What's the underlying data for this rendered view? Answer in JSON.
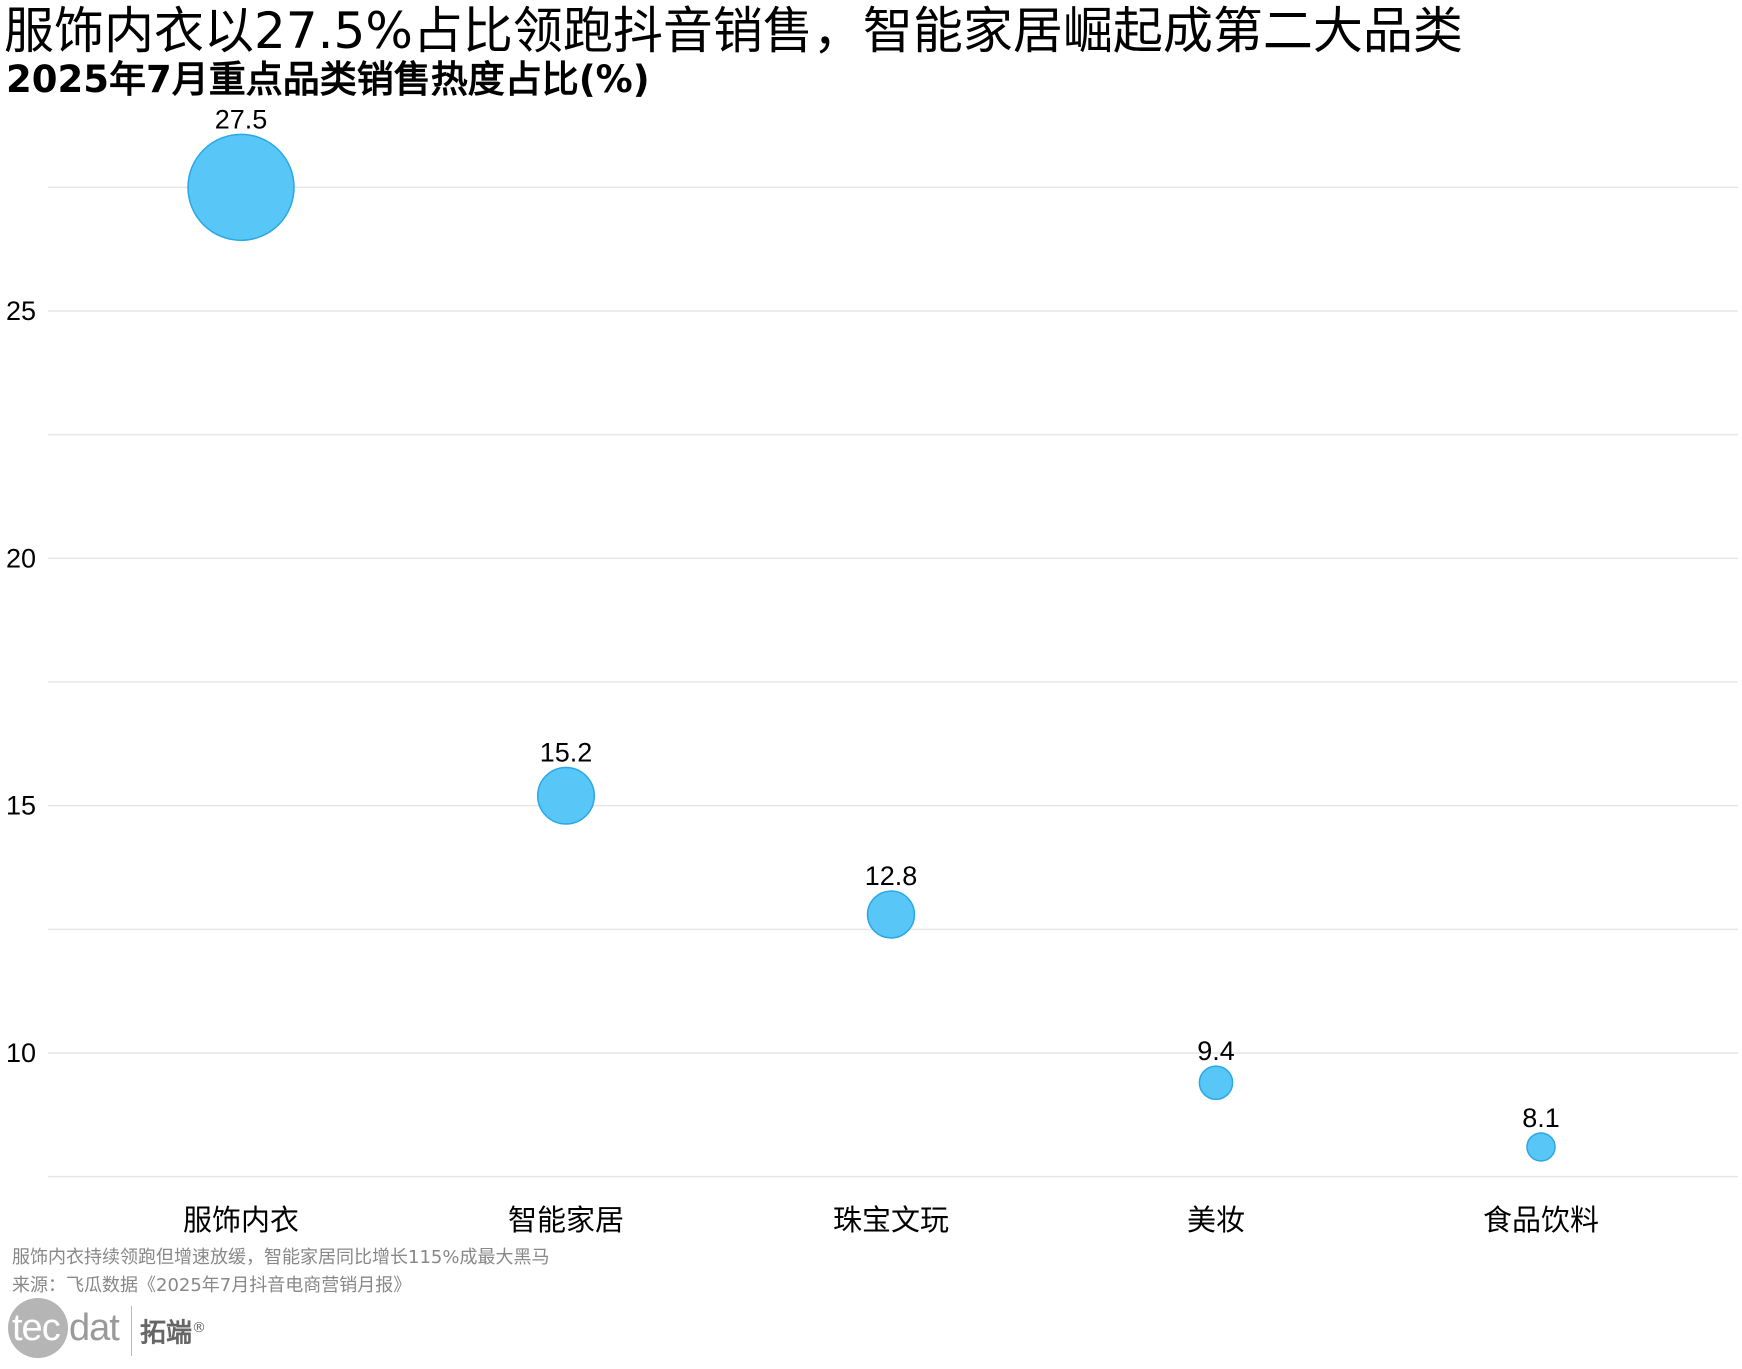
{
  "title": "服饰内衣以27.5%占比领跑抖音销售，智能家居崛起成第二大品类",
  "subtitle": "2025年7月重点品类销售热度占比(%)",
  "caption": {
    "note": "服饰内衣持续领跑但增速放缓，智能家居同比增长115%成最大黑马",
    "source": "来源：飞瓜数据《2025年7月抖音电商营销月报》"
  },
  "logo": {
    "tec": "tec",
    "dat": "dat",
    "cn": "拓端",
    "mark": "®"
  },
  "colors": {
    "bubble_fill": "#4fc3f7",
    "bubble_stroke": "#29a8e6",
    "grid": "#e6e6e6",
    "text": "#000000",
    "caption": "#888888"
  },
  "chart_data": {
    "type": "scatter",
    "categories": [
      "服饰内衣",
      "智能家居",
      "珠宝文玩",
      "美妆",
      "食品饮料"
    ],
    "values": [
      27.5,
      15.2,
      12.8,
      9.4,
      8.1
    ],
    "labels": [
      "27.5",
      "15.2",
      "12.8",
      "9.4",
      "8.1"
    ],
    "bubble_size_by": "value",
    "yticks": [
      10,
      15,
      20,
      25
    ],
    "ylim": [
      7.5,
      28.5
    ],
    "grid": true,
    "xlabel": "",
    "ylabel": ""
  }
}
